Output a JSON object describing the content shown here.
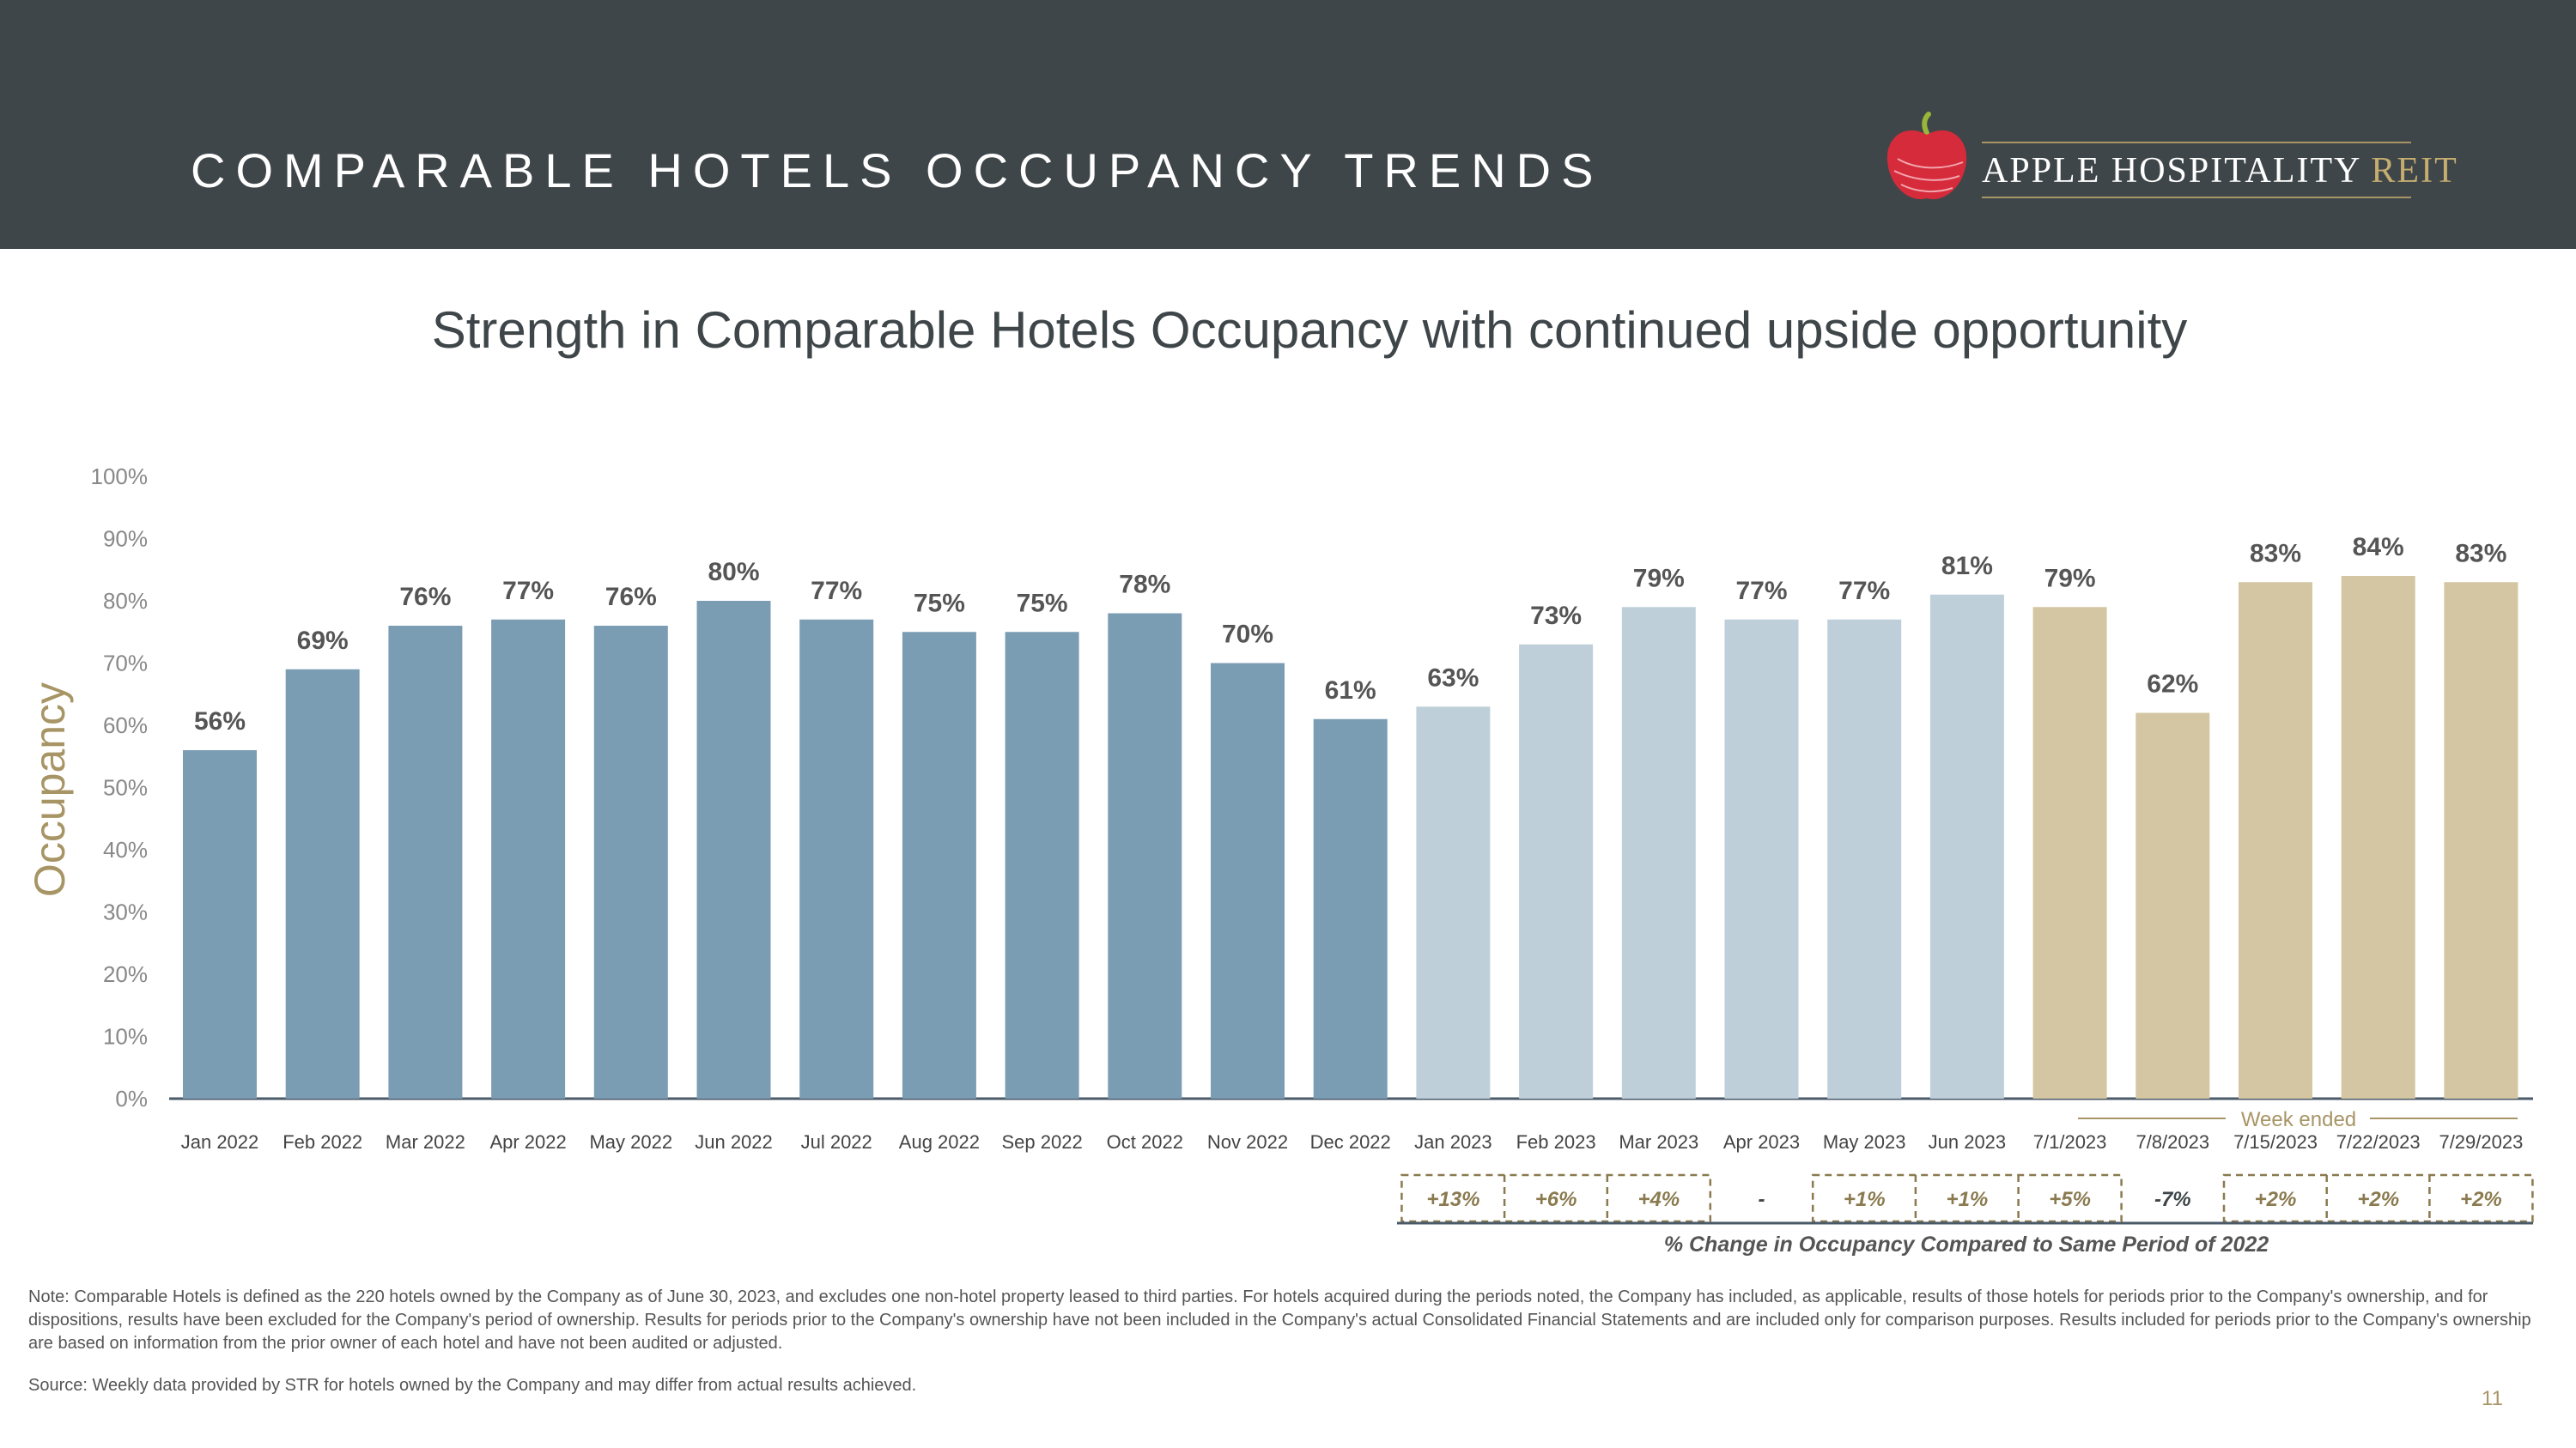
{
  "header": {
    "title": "COMPARABLE HOTELS OCCUPANCY TRENDS",
    "logo_main": "APPLE HOSPITALITY ",
    "logo_accent": "REIT"
  },
  "subtitle": "Strength in Comparable Hotels Occupancy with continued upside opportunity",
  "chart_data": {
    "type": "bar",
    "title": "",
    "ylabel": "Occupancy",
    "ylim": [
      0,
      100
    ],
    "yticks": [
      "0%",
      "10%",
      "20%",
      "30%",
      "40%",
      "50%",
      "60%",
      "70%",
      "80%",
      "90%",
      "100%"
    ],
    "categories": [
      "Jan 2022",
      "Feb 2022",
      "Mar 2022",
      "Apr 2022",
      "May 2022",
      "Jun 2022",
      "Jul 2022",
      "Aug 2022",
      "Sep 2022",
      "Oct 2022",
      "Nov 2022",
      "Dec 2022",
      "Jan 2023",
      "Feb 2023",
      "Mar 2023",
      "Apr 2023",
      "May 2023",
      "Jun 2023",
      "7/1/2023",
      "7/8/2023",
      "7/15/2023",
      "7/22/2023",
      "7/29/2023"
    ],
    "values": [
      56,
      69,
      76,
      77,
      76,
      80,
      77,
      75,
      75,
      78,
      70,
      61,
      63,
      73,
      79,
      77,
      77,
      81,
      79,
      62,
      83,
      84,
      83
    ],
    "labels": [
      "56%",
      "69%",
      "76%",
      "77%",
      "76%",
      "80%",
      "77%",
      "75%",
      "75%",
      "78%",
      "70%",
      "61%",
      "63%",
      "73%",
      "79%",
      "77%",
      "77%",
      "81%",
      "79%",
      "62%",
      "83%",
      "84%",
      "83%"
    ],
    "groups": [
      {
        "start": 0,
        "end": 11,
        "color": "#7b9db4"
      },
      {
        "start": 12,
        "end": 17,
        "color": "#bfcfd9"
      },
      {
        "start": 18,
        "end": 22,
        "color": "#d4c6a2"
      }
    ],
    "week_ended_label": "Week ended",
    "changes": [
      "+13%",
      "+6%",
      "+4%",
      "-",
      "+1%",
      "+1%",
      "+5%",
      "-7%",
      "+2%",
      "+2%",
      "+2%"
    ],
    "changes_caption": "% Change in Occupancy Compared to Same Period of 2022"
  },
  "colors": {
    "header_bg": "#3f4649",
    "gold": "#a89566",
    "axis_text": "#888888",
    "label_text": "#555555"
  },
  "footer": {
    "note": "Note:  Comparable Hotels is defined as the 220 hotels owned by the Company as of June 30, 2023, and excludes one non-hotel property leased to third parties. For hotels acquired during the periods noted, the Company has included, as applicable, results of those hotels for periods prior to the Company's ownership, and for dispositions, results have been excluded for the Company's period of ownership. Results for periods prior to the Company's ownership have not been included in the Company's actual Consolidated Financial Statements and are included only for comparison purposes. Results included for periods prior to the Company's ownership are based on information from the prior owner of each hotel and have not been audited or adjusted.",
    "source": "Source:  Weekly data provided by STR for hotels owned by the Company and may differ from actual results achieved.",
    "page_number": "11"
  }
}
